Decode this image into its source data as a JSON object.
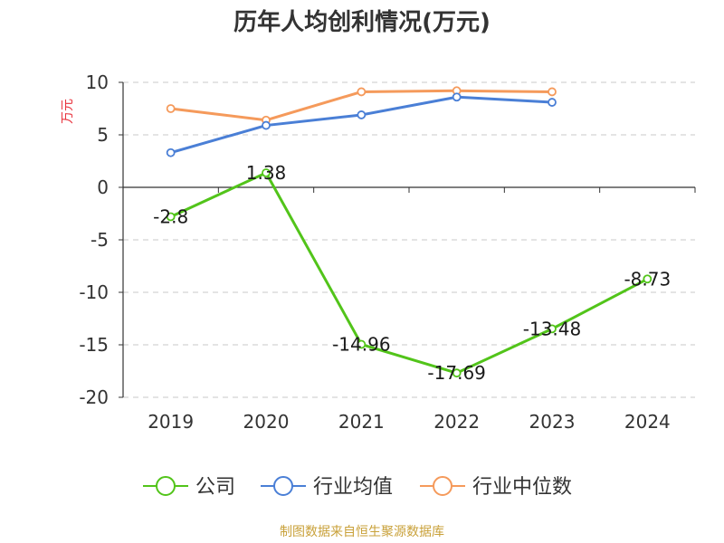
{
  "chart_data": {
    "type": "line",
    "title": "历年人均创利情况(万元)",
    "ylabel": "万元",
    "xlabel": "",
    "categories": [
      "2019",
      "2020",
      "2021",
      "2022",
      "2023",
      "2024"
    ],
    "ylim": [
      -20,
      10
    ],
    "yticks": [
      10,
      5,
      0,
      -5,
      -10,
      -15,
      -20
    ],
    "grid": true,
    "legend_position": "bottom",
    "series": [
      {
        "name": "公司",
        "color": "#52c41a",
        "values": [
          -2.8,
          1.38,
          -14.96,
          -17.69,
          -13.48,
          -8.73
        ],
        "labels": [
          "-2.8",
          "1.38",
          "-14.96",
          "-17.69",
          "-13.48",
          "-8.73"
        ]
      },
      {
        "name": "行业均值",
        "color": "#4a7fd6",
        "values": [
          3.3,
          5.9,
          6.9,
          8.6,
          8.1,
          null
        ]
      },
      {
        "name": "行业中位数",
        "color": "#f59a5b",
        "values": [
          7.5,
          6.4,
          9.1,
          9.2,
          9.1,
          null
        ]
      }
    ]
  },
  "source": "制图数据来自恒生聚源数据库"
}
